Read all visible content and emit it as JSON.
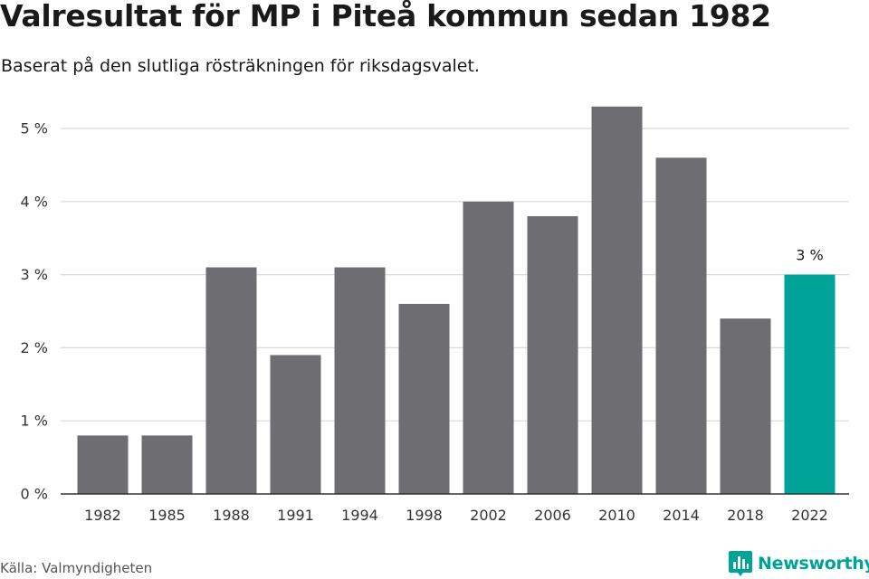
{
  "chart_data": {
    "type": "bar",
    "title": "Valresultat för MP i Piteå kommun sedan 1982",
    "subtitle": "Baserat på den slutliga rösträkningen för riksdagsvalet.",
    "categories": [
      "1982",
      "1985",
      "1988",
      "1991",
      "1994",
      "1998",
      "2002",
      "2006",
      "2010",
      "2014",
      "2018",
      "2022"
    ],
    "values": [
      0.8,
      0.8,
      3.1,
      1.9,
      3.1,
      2.6,
      4.0,
      3.8,
      5.3,
      4.6,
      2.4,
      3.0
    ],
    "unit": "%",
    "y_ticks": [
      0,
      1,
      2,
      3,
      4,
      5
    ],
    "y_tick_labels": [
      "0 %",
      "1 %",
      "2 %",
      "3 %",
      "4 %",
      "5 %"
    ],
    "ylim": [
      0,
      5.5
    ],
    "grid": true,
    "highlight_index": 11,
    "annotations": [
      {
        "category": "2022",
        "text": "3 %"
      }
    ],
    "colors": {
      "bar": "#6e6d72",
      "highlight": "#00a398",
      "grid": "#d9d9d9",
      "axis": "#333333"
    }
  },
  "source": "Källa: Valmyndigheten",
  "brand": {
    "name": "Newsworthy",
    "color": "#00a398",
    "icon": "bar-chart-logo-icon"
  }
}
